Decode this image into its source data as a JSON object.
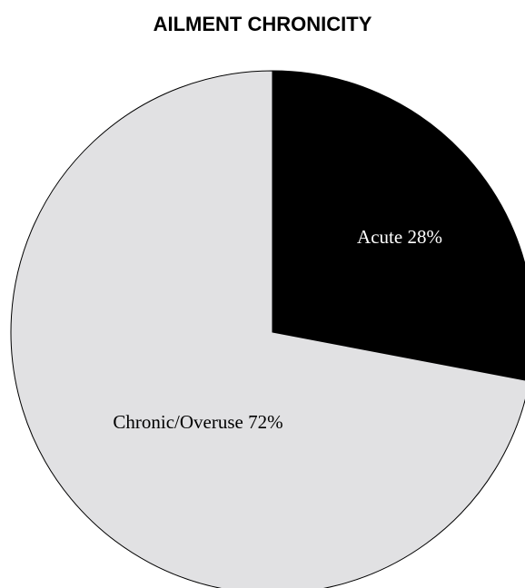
{
  "chart_data": {
    "type": "pie",
    "title": "AILMENT CHRONICITY",
    "slices": [
      {
        "label": "Acute",
        "value": 28,
        "display": "Acute 28%",
        "color": "#000000",
        "label_color": "#ffffff"
      },
      {
        "label": "Chronic/Overuse",
        "value": 72,
        "display": "Chronic/Overuse 72%",
        "color": "#e1e1e3",
        "label_color": "#000000"
      }
    ]
  }
}
